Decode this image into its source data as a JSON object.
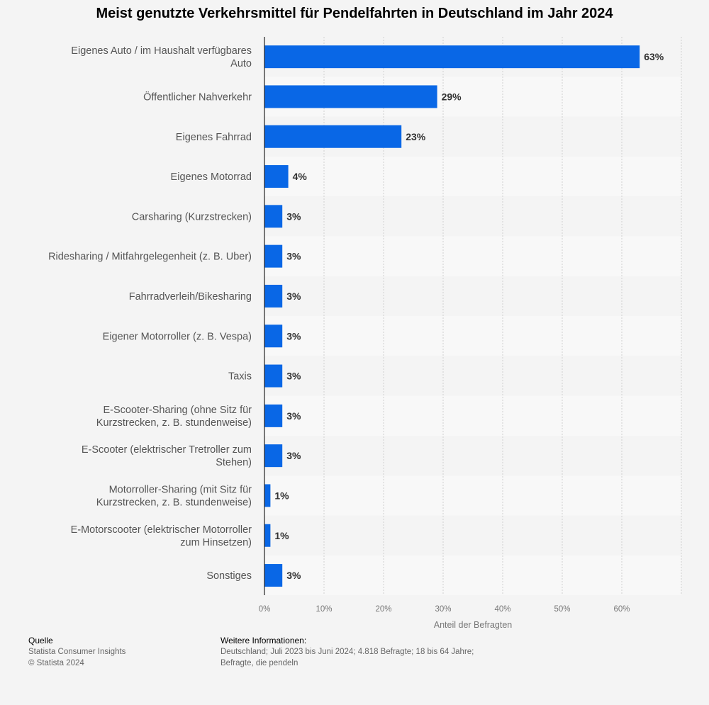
{
  "chart_data": {
    "type": "bar",
    "orientation": "horizontal",
    "title": "Meist genutzte Verkehrsmittel für Pendelfahrten in Deutschland im Jahr 2024",
    "xlabel": "Anteil der Befragten",
    "ylabel": "",
    "xlim": [
      0,
      70
    ],
    "x_ticks": [
      0,
      10,
      20,
      30,
      40,
      50,
      60
    ],
    "x_tick_labels": [
      "0%",
      "10%",
      "20%",
      "30%",
      "40%",
      "50%",
      "60%"
    ],
    "grid": true,
    "bar_color": "#0967e6",
    "categories": [
      [
        "Eigenes Auto / im Haushalt verfügbares",
        "Auto"
      ],
      [
        "Öffentlicher Nahverkehr"
      ],
      [
        "Eigenes Fahrrad"
      ],
      [
        "Eigenes Motorrad"
      ],
      [
        "Carsharing (Kurzstrecken)"
      ],
      [
        "Ridesharing / Mitfahrgelegenheit (z. B. Uber)"
      ],
      [
        "Fahrradverleih/Bikesharing"
      ],
      [
        "Eigener Motorroller (z. B. Vespa)"
      ],
      [
        "Taxis"
      ],
      [
        "E-Scooter-Sharing (ohne Sitz für",
        "Kurzstrecken, z. B. stundenweise)"
      ],
      [
        "E-Scooter (elektrischer Tretroller zum",
        "Stehen)"
      ],
      [
        "Motorroller-Sharing (mit Sitz für",
        "Kurzstrecken, z. B. stundenweise)"
      ],
      [
        "E-Motorscooter (elektrischer Motorroller",
        "zum Hinsetzen)"
      ],
      [
        "Sonstiges"
      ]
    ],
    "values": [
      63,
      29,
      23,
      4,
      3,
      3,
      3,
      3,
      3,
      3,
      3,
      1,
      1,
      3
    ],
    "value_labels": [
      "63%",
      "29%",
      "23%",
      "4%",
      "3%",
      "3%",
      "3%",
      "3%",
      "3%",
      "3%",
      "3%",
      "1%",
      "1%",
      "3%"
    ]
  },
  "footer": {
    "source_heading": "Quelle",
    "source_line1": "Statista Consumer Insights",
    "source_line2": "© Statista 2024",
    "info_heading": "Weitere Informationen:",
    "info_line1": "Deutschland; Juli 2023 bis Juni 2024; 4.818 Befragte; 18 bis 64 Jahre;",
    "info_line2": "Befragte, die pendeln"
  }
}
